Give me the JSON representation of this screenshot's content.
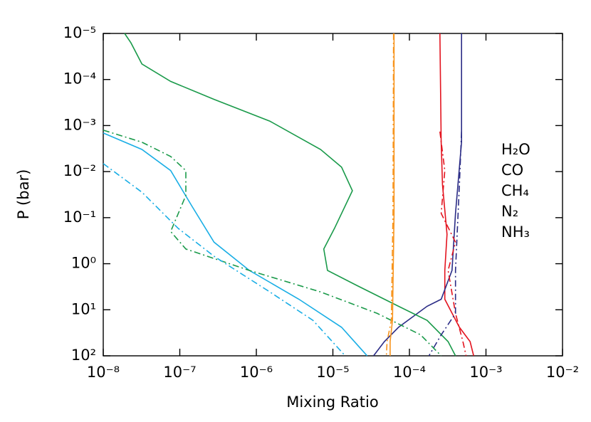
{
  "chart_data": {
    "type": "line",
    "xlabel": "Mixing Ratio",
    "ylabel": "P (bar)",
    "xlog": true,
    "ylog": true,
    "y_inverted": true,
    "xlim": [
      1e-08,
      0.01
    ],
    "ylim": [
      1e-05,
      100
    ],
    "xticks": [
      {
        "value": 1e-08,
        "label": "10⁻⁸"
      },
      {
        "value": 1e-07,
        "label": "10⁻⁷"
      },
      {
        "value": 1e-06,
        "label": "10⁻⁶"
      },
      {
        "value": 1e-05,
        "label": "10⁻⁵"
      },
      {
        "value": 0.0001,
        "label": "10⁻⁴"
      },
      {
        "value": 0.001,
        "label": "10⁻³"
      },
      {
        "value": 0.01,
        "label": "10⁻²"
      }
    ],
    "yticks": [
      {
        "value": 1e-05,
        "label": "10⁻⁵"
      },
      {
        "value": 0.0001,
        "label": "10⁻⁴"
      },
      {
        "value": 0.001,
        "label": "10⁻³"
      },
      {
        "value": 0.01,
        "label": "10⁻²"
      },
      {
        "value": 0.1,
        "label": "10⁻¹"
      },
      {
        "value": 1,
        "label": "10⁰"
      },
      {
        "value": 10,
        "label": "10¹"
      },
      {
        "value": 100,
        "label": "10²"
      }
    ],
    "series": [
      {
        "name": "H₂O",
        "color": "#e3141f",
        "dash": "solid",
        "x": [
          0.00025,
          0.00026,
          0.00027,
          0.00031,
          0.00029,
          0.00029,
          0.00045,
          0.00062,
          0.00069
        ],
        "values": [
          1e-05,
          0.0023,
          0.019,
          0.23,
          1.4,
          5.9,
          24,
          49,
          100
        ]
      },
      {
        "name": "CO",
        "color": "#2b2c86",
        "dash": "solid",
        "x": [
          0.00048,
          0.00048,
          0.0004,
          0.00036,
          0.00026,
          0.00017,
          7.2e-05,
          4.7e-05,
          3.4e-05
        ],
        "values": [
          1e-05,
          0.0023,
          0.081,
          1.4,
          5.9,
          8.4,
          24,
          49,
          100
        ]
      },
      {
        "name": "CH₄",
        "color": "#1a9a4a",
        "dash": "solid",
        "x": [
          1.9e-08,
          2.3e-08,
          3.2e-08,
          7.6e-08,
          2.8e-07,
          1.5e-06,
          6.9e-06,
          1.3e-05,
          1.8e-05,
          1.05e-05,
          7.6e-06,
          8.5e-06,
          2e-05,
          7.2e-05,
          0.00017,
          0.00032,
          0.0004
        ],
        "values": [
          1e-05,
          1.6e-05,
          4.6e-05,
          0.00011,
          0.00027,
          0.0008,
          0.0033,
          0.008,
          0.026,
          0.17,
          0.48,
          1.4,
          2.9,
          8.4,
          17,
          49,
          100
        ]
      },
      {
        "name": "N₂",
        "color": "#f7941d",
        "dash": "solid",
        "x": [
          6.3e-05,
          6.3e-05,
          6e-05,
          5.6e-05,
          5.6e-05
        ],
        "values": [
          1e-05,
          0.081,
          17,
          49,
          100
        ]
      },
      {
        "name": "NH₃",
        "color": "#1aaee5",
        "dash": "solid",
        "x": [
          1e-08,
          3.2e-08,
          7.6e-08,
          1.45e-07,
          2.8e-07,
          8.1e-07,
          3.6e-06,
          1.3e-05,
          2.8e-05
        ],
        "values": [
          0.00145,
          0.0033,
          0.0095,
          0.057,
          0.34,
          1.4,
          5.9,
          24,
          100
        ]
      },
      {
        "color": "#e3141f",
        "dash": "dashdot",
        "x": [
          0.00025,
          0.00029,
          0.00026,
          0.0004,
          0.00032,
          0.0004,
          0.0005,
          0.00055
        ],
        "values": [
          0.00135,
          0.0095,
          0.081,
          0.34,
          1.4,
          12,
          49,
          100
        ]
      },
      {
        "color": "#2b2c86",
        "dash": "dashdot",
        "x": [
          0.00048,
          0.00045,
          0.0004,
          0.0004,
          0.00026,
          0.00018
        ],
        "values": [
          0.00135,
          0.019,
          1.4,
          12,
          35,
          100
        ]
      },
      {
        "color": "#1a9a4a",
        "dash": "dashdot",
        "x": [
          1e-08,
          3.2e-08,
          7.6e-08,
          1.2e-07,
          1.2e-07,
          7.6e-08,
          1.2e-07,
          8.1e-07,
          6.9e-06,
          3.8e-05,
          0.00014,
          0.00026
        ],
        "values": [
          0.00126,
          0.0023,
          0.0047,
          0.0095,
          0.033,
          0.2,
          0.48,
          1.4,
          4.1,
          12,
          35,
          100
        ]
      },
      {
        "color": "#f7941d",
        "dash": "dashdot",
        "x": [
          6.2e-05,
          6.1e-05,
          5.8e-05,
          5.1e-05,
          5e-05
        ],
        "values": [
          1e-05,
          0.081,
          17,
          49,
          100
        ]
      },
      {
        "color": "#1aaee5",
        "dash": "dashdot",
        "x": [
          1e-08,
          3.2e-08,
          9.5e-08,
          2.8e-07,
          1.5e-06,
          5.5e-06,
          1.45e-05
        ],
        "values": [
          0.0067,
          0.028,
          0.17,
          0.69,
          4.1,
          17,
          100
        ]
      }
    ]
  }
}
